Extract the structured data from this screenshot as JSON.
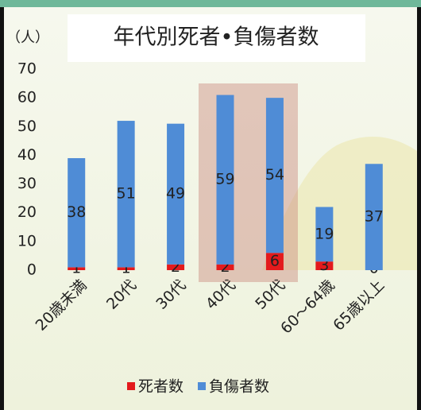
{
  "chart_data": {
    "type": "stacked_bar",
    "title": "年代別死者•負傷者数",
    "y_label": "（人）",
    "categories": [
      "20歳未満",
      "20代",
      "30代",
      "40代",
      "50代",
      "60～64歳",
      "65歳以上"
    ],
    "series": [
      {
        "name": "死者数",
        "color": "#e31a1c",
        "values": [
          1,
          1,
          2,
          2,
          6,
          3,
          0
        ]
      },
      {
        "name": "負傷者数",
        "color": "#4f8cd6",
        "values": [
          38,
          51,
          49,
          59,
          54,
          19,
          37
        ]
      }
    ],
    "ylim": [
      0,
      70
    ],
    "yticks": [
      0,
      10,
      20,
      30,
      40,
      50,
      60,
      70
    ],
    "legend": "bottom"
  }
}
